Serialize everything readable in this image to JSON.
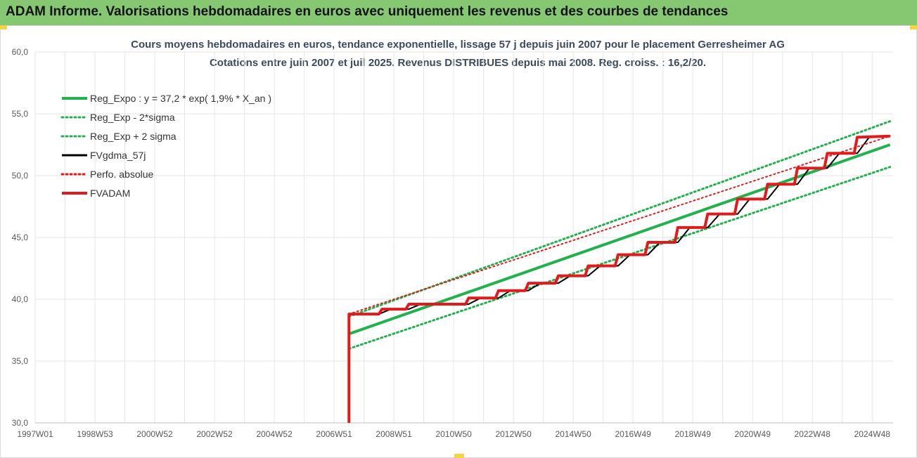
{
  "banner": {
    "title": "ADAM Informe. Valorisations hebdomadaires en euros avec uniquement les revenus et des courbes de tendances"
  },
  "colors": {
    "banner_bg": "#86c872",
    "trend_green": "#22b14c",
    "fvadam_red": "#e31a1c",
    "fvgdma_black": "#000000",
    "grid": "#e6e6e6",
    "axis_text": "#595959"
  },
  "chart_data": {
    "type": "line",
    "title": "Cours moyens hebdomadaires en euros, tendance exponentielle, lissage 57 j depuis juin 2007 pour le placement Gerresheimer AG",
    "subtitle": "Cotations entre juin 2007 et juil 2025. Revenus DISTRIBUES depuis mai 2008. Reg. croiss. : 16,2/20.",
    "xlabel": "",
    "ylabel": "",
    "ylim": [
      30,
      60
    ],
    "xlim": [
      1997.0,
      2025.7
    ],
    "y_ticks": [
      "30,0",
      "35,0",
      "40,0",
      "45,0",
      "50,0",
      "55,0",
      "60,0"
    ],
    "y_tick_values": [
      30,
      35,
      40,
      45,
      50,
      55,
      60
    ],
    "x_ticks": [
      "1997W01",
      "1998W53",
      "2000W52",
      "2002W52",
      "2004W52",
      "2006W51",
      "2008W51",
      "2010W50",
      "2012W50",
      "2014W50",
      "2016W49",
      "2018W49",
      "2020W49",
      "2022W48",
      "2024W48"
    ],
    "x_tick_values": [
      1997.0,
      1999.0,
      2001.0,
      2003.0,
      2005.0,
      2007.0,
      2009.0,
      2011.0,
      2013.0,
      2015.0,
      2017.0,
      2019.0,
      2021.0,
      2023.0,
      2025.0
    ],
    "grid": true,
    "legend_position": "top-left",
    "series": [
      {
        "name": "Reg_Expo : y = 37,2 * exp( 1,9% *  X_an )",
        "style": "solid",
        "color": "#22b14c",
        "x": [
          2007.5,
          2025.6
        ],
        "y": [
          37.2,
          52.5
        ]
      },
      {
        "name": "Reg_Exp - 2*sigma",
        "style": "dotted",
        "color": "#22b14c",
        "x": [
          2007.5,
          2025.6
        ],
        "y": [
          36.0,
          50.7
        ]
      },
      {
        "name": "Reg_Exp + 2 sigma",
        "style": "dotted",
        "color": "#22b14c",
        "x": [
          2007.5,
          2025.6
        ],
        "y": [
          38.6,
          54.4
        ]
      },
      {
        "name": "FVgdma_57j",
        "style": "solid",
        "color": "#000000",
        "x": [
          2007.5,
          2008.5,
          2008.9,
          2009.5,
          2009.9,
          2010.5,
          2011.5,
          2011.9,
          2012.5,
          2012.9,
          2013.5,
          2013.9,
          2014.5,
          2014.9,
          2015.5,
          2015.9,
          2016.5,
          2016.9,
          2017.5,
          2017.9,
          2018.5,
          2018.9,
          2019.5,
          2019.9,
          2020.5,
          2020.9,
          2021.5,
          2021.9,
          2022.5,
          2022.9,
          2023.5,
          2023.9,
          2024.5,
          2024.9,
          2025.6
        ],
        "y": [
          38.8,
          38.8,
          39.2,
          39.2,
          39.6,
          39.6,
          39.6,
          40.1,
          40.1,
          40.7,
          40.7,
          41.3,
          41.3,
          41.9,
          41.9,
          42.7,
          42.7,
          43.6,
          43.6,
          44.6,
          44.6,
          45.8,
          45.8,
          46.9,
          46.9,
          48.1,
          48.1,
          49.3,
          49.3,
          50.6,
          50.6,
          51.8,
          51.8,
          53.1,
          53.2
        ]
      },
      {
        "name": "Perfo. absolue",
        "style": "dotted",
        "color": "#e31a1c",
        "x": [
          2007.5,
          2025.6
        ],
        "y": [
          38.8,
          53.2
        ]
      },
      {
        "name": "FVADAM",
        "style": "solid",
        "color": "#e31a1c",
        "x": [
          2007.5,
          2007.5,
          2008.5,
          2008.6,
          2009.4,
          2009.5,
          2011.4,
          2011.5,
          2012.4,
          2012.5,
          2013.4,
          2013.5,
          2014.4,
          2014.5,
          2015.4,
          2015.5,
          2016.4,
          2016.5,
          2017.4,
          2017.5,
          2018.4,
          2018.5,
          2019.4,
          2019.5,
          2020.4,
          2020.5,
          2021.4,
          2021.5,
          2022.4,
          2022.5,
          2023.4,
          2023.5,
          2024.4,
          2024.5,
          2025.6
        ],
        "y": [
          30.0,
          38.8,
          38.8,
          39.2,
          39.2,
          39.6,
          39.6,
          40.1,
          40.1,
          40.7,
          40.7,
          41.3,
          41.3,
          41.9,
          41.9,
          42.7,
          42.7,
          43.6,
          43.6,
          44.6,
          44.6,
          45.8,
          45.8,
          46.9,
          46.9,
          48.1,
          48.1,
          49.3,
          49.3,
          50.6,
          50.6,
          51.8,
          51.8,
          53.1,
          53.2
        ]
      }
    ]
  }
}
